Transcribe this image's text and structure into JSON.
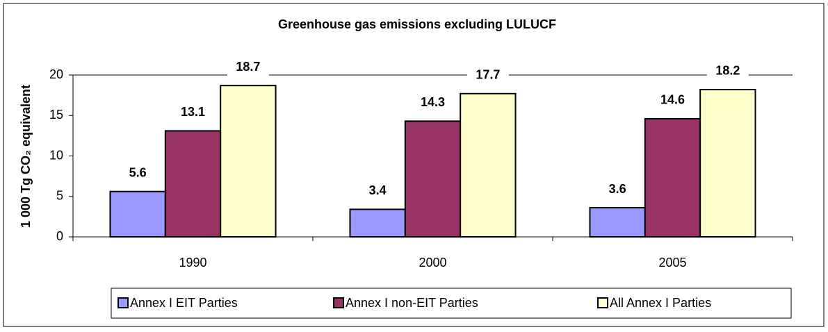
{
  "chart_data": {
    "type": "bar",
    "title": "Greenhouse gas emissions excluding LULUCF",
    "ylabel": "1 000 Tg CO₂ equivalent",
    "categories": [
      "1990",
      "2000",
      "2005"
    ],
    "series": [
      {
        "name": "Annex I EIT Parties",
        "color": "#9999ff",
        "values": [
          5.6,
          3.4,
          3.6
        ]
      },
      {
        "name": "Annex I non-EIT Parties",
        "color": "#993366",
        "values": [
          13.1,
          14.3,
          14.6
        ]
      },
      {
        "name": "All Annex I Parties",
        "color": "#ffffcc",
        "values": [
          18.7,
          17.7,
          18.2
        ]
      }
    ],
    "ylim": [
      0,
      20
    ],
    "yticks": [
      0,
      5,
      10,
      15,
      20
    ],
    "grid": false,
    "legend": "bottom"
  }
}
